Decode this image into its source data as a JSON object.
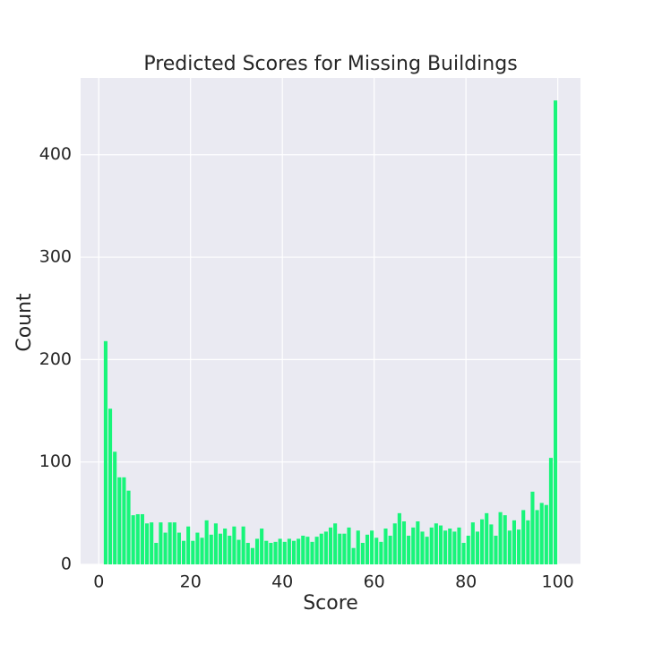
{
  "chart_data": {
    "type": "histogram",
    "title": "Predicted Scores for Missing Buildings",
    "x_label": "Score",
    "y_label": "Count",
    "color": "#18f57a",
    "grid": true,
    "bins": [
      1,
      2,
      3,
      4,
      5,
      6,
      7,
      8,
      9,
      10,
      11,
      12,
      13,
      14,
      15,
      16,
      17,
      18,
      19,
      20,
      21,
      22,
      23,
      24,
      25,
      26,
      27,
      28,
      29,
      30,
      31,
      32,
      33,
      34,
      35,
      36,
      37,
      38,
      39,
      40,
      41,
      42,
      43,
      44,
      45,
      46,
      47,
      48,
      49,
      50,
      51,
      52,
      53,
      54,
      55,
      56,
      57,
      58,
      59,
      60,
      61,
      62,
      63,
      64,
      65,
      66,
      67,
      68,
      69,
      70,
      71,
      72,
      73,
      74,
      75,
      76,
      77,
      78,
      79,
      80,
      81,
      82,
      83,
      84,
      85,
      86,
      87,
      88,
      89,
      90,
      91,
      92,
      93,
      94,
      95,
      96,
      97,
      98,
      99,
      100
    ],
    "values": [
      218,
      152,
      110,
      85,
      85,
      72,
      48,
      49,
      49,
      40,
      41,
      21,
      41,
      31,
      41,
      41,
      31,
      23,
      37,
      23,
      31,
      26,
      43,
      29,
      40,
      30,
      35,
      28,
      37,
      24,
      37,
      21,
      16,
      25,
      35,
      23,
      21,
      22,
      25,
      22,
      25,
      23,
      25,
      28,
      27,
      22,
      27,
      30,
      32,
      36,
      40,
      30,
      30,
      36,
      16,
      33,
      21,
      29,
      33,
      26,
      22,
      35,
      28,
      40,
      50,
      42,
      28,
      36,
      42,
      32,
      27,
      36,
      40,
      38,
      33,
      35,
      32,
      36,
      21,
      28,
      41,
      32,
      44,
      50,
      39,
      28,
      51,
      48,
      33,
      43,
      34,
      53,
      43,
      71,
      53,
      60,
      58,
      104,
      453
    ],
    "xlim": [
      -3.95,
      104.95
    ],
    "ylim": [
      0,
      475
    ],
    "xticks": [
      0,
      20,
      40,
      60,
      80,
      100
    ],
    "yticks": [
      0,
      100,
      200,
      300,
      400
    ]
  }
}
